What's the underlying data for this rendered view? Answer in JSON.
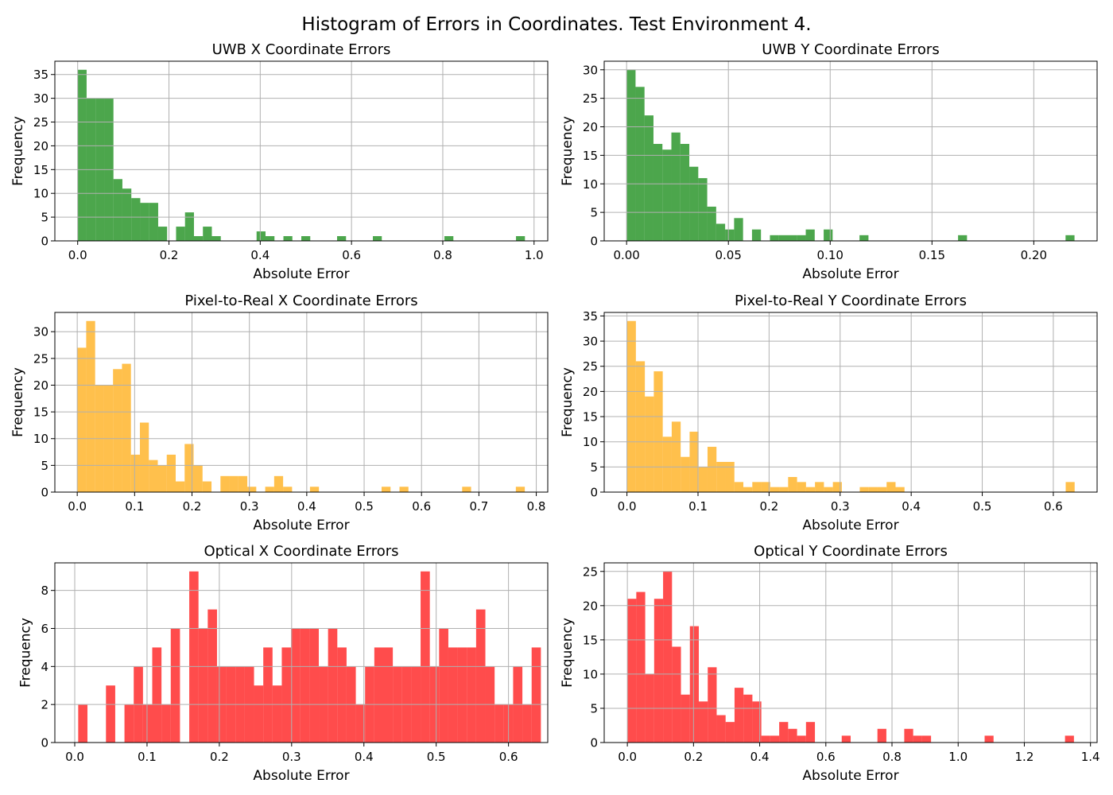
{
  "figure": {
    "title": "Histogram of Errors in Coordinates. Test Environment 4."
  },
  "chart_data": [
    {
      "type": "bar",
      "title": "UWB X Coordinate Errors",
      "xlabel": "Absolute Error",
      "ylabel": "Frequency",
      "color": "#008000",
      "opacity": 0.7,
      "grid": true,
      "xlim": [
        -0.05,
        1.03
      ],
      "ylim": [
        0,
        37.8
      ],
      "xticks": [
        0.0,
        0.2,
        0.4,
        0.6,
        0.8,
        1.0
      ],
      "xtick_labels": [
        "0.0",
        "0.2",
        "0.4",
        "0.6",
        "0.8",
        "1.0"
      ],
      "yticks": [
        0,
        5,
        10,
        15,
        20,
        25,
        30,
        35
      ],
      "ytick_labels": [
        "0",
        "5",
        "10",
        "15",
        "20",
        "25",
        "30",
        "35"
      ],
      "bin_start": 0.0,
      "bin_width": 0.0196,
      "counts": [
        36,
        30,
        30,
        30,
        13,
        11,
        9,
        8,
        8,
        3,
        0,
        3,
        6,
        1,
        3,
        1,
        0,
        0,
        0,
        0,
        2,
        1,
        0,
        1,
        0,
        1,
        0,
        0,
        0,
        1,
        0,
        0,
        0,
        1,
        0,
        0,
        0,
        0,
        0,
        0,
        0,
        1,
        0,
        0,
        0,
        0,
        0,
        0,
        0,
        1
      ]
    },
    {
      "type": "bar",
      "title": "UWB Y Coordinate Errors",
      "xlabel": "Absolute Error",
      "ylabel": "Frequency",
      "color": "#008000",
      "opacity": 0.7,
      "grid": true,
      "xlim": [
        -0.011,
        0.2311
      ],
      "ylim": [
        0,
        31.5
      ],
      "xticks": [
        0.0,
        0.05,
        0.1,
        0.15,
        0.2
      ],
      "xtick_labels": [
        "0.00",
        "0.05",
        "0.10",
        "0.15",
        "0.20"
      ],
      "yticks": [
        0,
        5,
        10,
        15,
        20,
        25,
        30
      ],
      "ytick_labels": [
        "0",
        "5",
        "10",
        "15",
        "20",
        "25",
        "30"
      ],
      "bin_start": 0.0,
      "bin_width": 0.0044,
      "counts": [
        30,
        27,
        22,
        17,
        16,
        19,
        17,
        13,
        11,
        6,
        3,
        2,
        4,
        0,
        2,
        0,
        1,
        1,
        1,
        1,
        2,
        0,
        2,
        0,
        0,
        0,
        1,
        0,
        0,
        0,
        0,
        0,
        0,
        0,
        0,
        0,
        0,
        1,
        0,
        0,
        0,
        0,
        0,
        0,
        0,
        0,
        0,
        0,
        0,
        1
      ]
    },
    {
      "type": "bar",
      "title": "Pixel-to-Real X Coordinate Errors",
      "xlabel": "Absolute Error",
      "ylabel": "Frequency",
      "color": "#FFA500",
      "opacity": 0.7,
      "grid": true,
      "xlim": [
        -0.039,
        0.82
      ],
      "ylim": [
        0,
        33.6
      ],
      "xticks": [
        0.0,
        0.1,
        0.2,
        0.3,
        0.4,
        0.5,
        0.6,
        0.7,
        0.8
      ],
      "xtick_labels": [
        "0.0",
        "0.1",
        "0.2",
        "0.3",
        "0.4",
        "0.5",
        "0.6",
        "0.7",
        "0.8"
      ],
      "yticks": [
        0,
        5,
        10,
        15,
        20,
        25,
        30
      ],
      "ytick_labels": [
        "0",
        "5",
        "10",
        "15",
        "20",
        "25",
        "30"
      ],
      "bin_start": 0.0,
      "bin_width": 0.0156,
      "counts": [
        27,
        32,
        20,
        20,
        23,
        24,
        7,
        13,
        6,
        5,
        7,
        2,
        9,
        5,
        2,
        0,
        3,
        3,
        3,
        1,
        0,
        1,
        3,
        1,
        0,
        0,
        1,
        0,
        0,
        0,
        0,
        0,
        0,
        0,
        1,
        0,
        1,
        0,
        0,
        0,
        0,
        0,
        0,
        1,
        0,
        0,
        0,
        0,
        0,
        1
      ]
    },
    {
      "type": "bar",
      "title": "Pixel-to-Real Y Coordinate Errors",
      "xlabel": "Absolute Error",
      "ylabel": "Frequency",
      "color": "#FFA500",
      "opacity": 0.7,
      "grid": true,
      "xlim": [
        -0.032,
        0.6616
      ],
      "ylim": [
        0,
        35.7
      ],
      "xticks": [
        0.0,
        0.1,
        0.2,
        0.3,
        0.4,
        0.5,
        0.6
      ],
      "xtick_labels": [
        "0.0",
        "0.1",
        "0.2",
        "0.3",
        "0.4",
        "0.5",
        "0.6"
      ],
      "yticks": [
        0,
        5,
        10,
        15,
        20,
        25,
        30,
        35
      ],
      "ytick_labels": [
        "0",
        "5",
        "10",
        "15",
        "20",
        "25",
        "30",
        "35"
      ],
      "bin_start": 0.0,
      "bin_width": 0.0126,
      "counts": [
        34,
        26,
        19,
        24,
        11,
        14,
        7,
        12,
        5,
        9,
        6,
        6,
        2,
        1,
        2,
        2,
        1,
        1,
        3,
        2,
        1,
        2,
        1,
        2,
        0,
        0,
        1,
        1,
        1,
        2,
        1,
        0,
        0,
        0,
        0,
        0,
        0,
        0,
        0,
        0,
        0,
        0,
        0,
        0,
        0,
        0,
        0,
        0,
        0,
        2
      ]
    },
    {
      "type": "bar",
      "title": "Optical X Coordinate Errors",
      "xlabel": "Absolute Error",
      "ylabel": "Frequency",
      "color": "#FF0000",
      "opacity": 0.7,
      "grid": true,
      "xlim": [
        -0.0275,
        0.6543
      ],
      "ylim": [
        0,
        9.45
      ],
      "xticks": [
        0.0,
        0.1,
        0.2,
        0.3,
        0.4,
        0.5,
        0.6
      ],
      "xtick_labels": [
        "0.0",
        "0.1",
        "0.2",
        "0.3",
        "0.4",
        "0.5",
        "0.6"
      ],
      "yticks": [
        0,
        2,
        4,
        6,
        8
      ],
      "ytick_labels": [
        "0",
        "2",
        "4",
        "6",
        "8"
      ],
      "bin_start": 0.0048,
      "bin_width": 0.0128,
      "counts": [
        2,
        0,
        0,
        3,
        0,
        2,
        4,
        2,
        5,
        2,
        6,
        0,
        9,
        6,
        7,
        4,
        4,
        4,
        4,
        3,
        5,
        3,
        5,
        6,
        6,
        6,
        4,
        6,
        5,
        4,
        2,
        4,
        5,
        5,
        4,
        4,
        4,
        9,
        4,
        6,
        5,
        5,
        5,
        7,
        4,
        2,
        2,
        4,
        2,
        5
      ]
    },
    {
      "type": "bar",
      "title": "Optical Y Coordinate Errors",
      "xlabel": "Absolute Error",
      "ylabel": "Frequency",
      "color": "#FF0000",
      "opacity": 0.7,
      "grid": true,
      "xlim": [
        -0.07,
        1.42
      ],
      "ylim": [
        0,
        26.25
      ],
      "xticks": [
        0.0,
        0.2,
        0.4,
        0.6,
        0.8,
        1.0,
        1.2,
        1.4
      ],
      "xtick_labels": [
        "0.0",
        "0.2",
        "0.4",
        "0.6",
        "0.8",
        "1.0",
        "1.2",
        "1.4"
      ],
      "yticks": [
        0,
        5,
        10,
        15,
        20,
        25
      ],
      "ytick_labels": [
        "0",
        "5",
        "10",
        "15",
        "20",
        "25"
      ],
      "bin_start": 0.0,
      "bin_width": 0.027,
      "counts": [
        21,
        22,
        10,
        21,
        25,
        14,
        7,
        17,
        6,
        11,
        4,
        3,
        8,
        7,
        6,
        1,
        1,
        3,
        2,
        1,
        3,
        0,
        0,
        0,
        1,
        0,
        0,
        0,
        2,
        0,
        0,
        2,
        1,
        1,
        0,
        0,
        0,
        0,
        0,
        0,
        1,
        0,
        0,
        0,
        0,
        0,
        0,
        0,
        0,
        1
      ]
    }
  ]
}
